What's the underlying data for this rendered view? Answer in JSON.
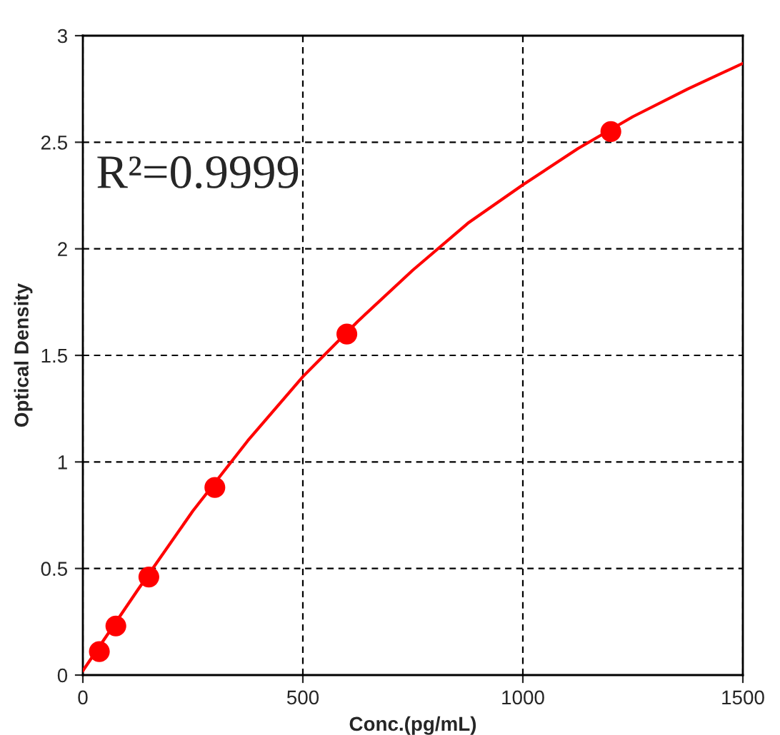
{
  "chart_data": {
    "type": "scatter",
    "xlabel": "Conc.(pg/mL)",
    "ylabel": "Optical Density",
    "xlim": [
      0,
      1500
    ],
    "ylim": [
      0,
      3
    ],
    "xticks": [
      0,
      500,
      1000,
      1500
    ],
    "yticks": [
      0,
      0.5,
      1,
      1.5,
      2,
      2.5,
      3
    ],
    "grid": true,
    "annotations": [
      "R²=0.9999"
    ],
    "series": [
      {
        "type": "line",
        "color": "#ff0000",
        "marker": "none",
        "line_style": "solid",
        "x": [
          0,
          125,
          250,
          375,
          500,
          625,
          750,
          875,
          1000,
          1125,
          1250,
          1375,
          1500
        ],
        "values": [
          0.02,
          0.4,
          0.77,
          1.1,
          1.4,
          1.66,
          1.9,
          2.12,
          2.3,
          2.47,
          2.62,
          2.75,
          2.87
        ]
      },
      {
        "color": "#ff0000",
        "marker": "circle",
        "x": [
          37.5,
          75,
          150,
          300,
          600,
          1200
        ],
        "values": [
          0.11,
          0.23,
          0.46,
          0.88,
          1.6,
          2.55
        ]
      }
    ]
  }
}
